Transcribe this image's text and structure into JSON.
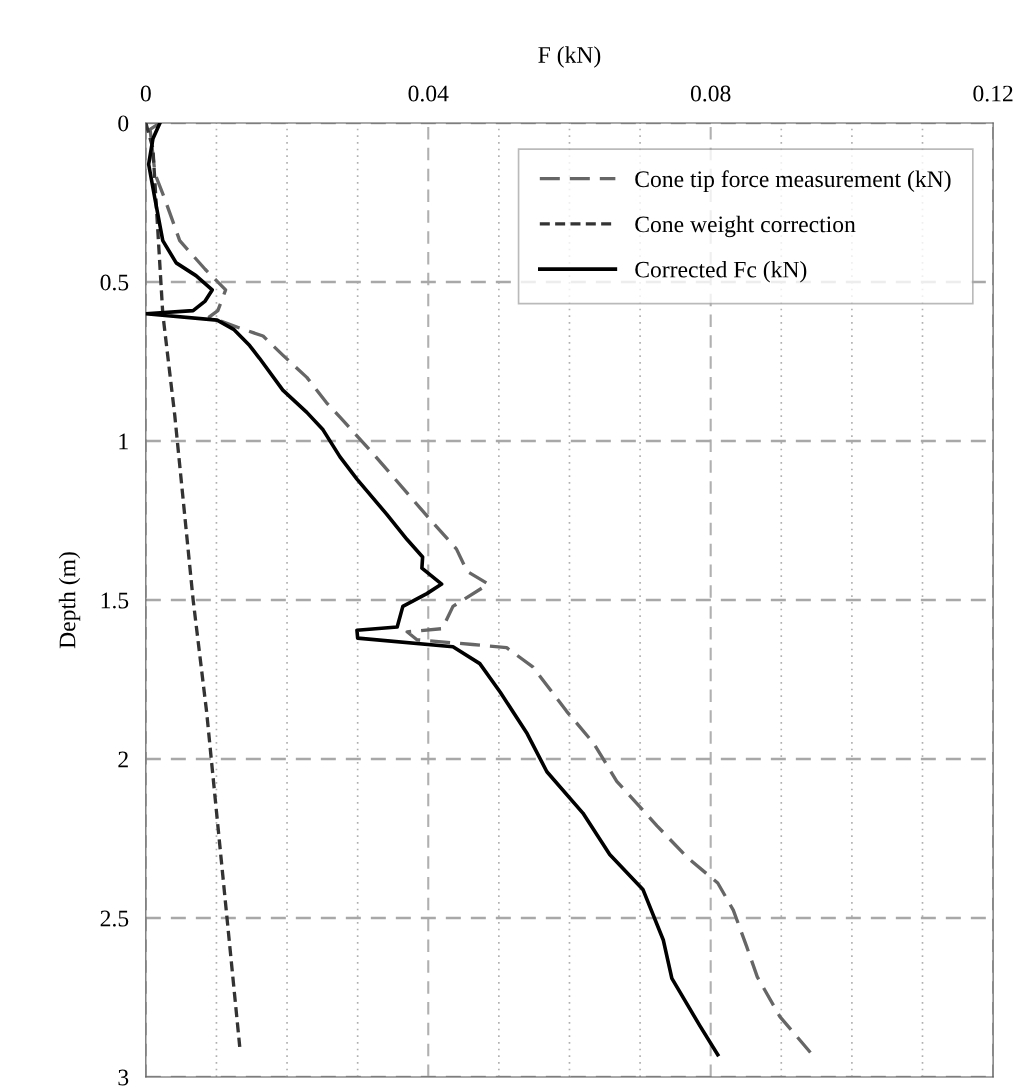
{
  "chart_data": {
    "type": "line",
    "xlabel": "F (kN)",
    "ylabel": "Depth (m)",
    "xlim": [
      0,
      0.12
    ],
    "ylim": [
      3,
      0
    ],
    "xticks": [
      0,
      {
        "value": 0.01,
        "label": null
      },
      {
        "value": 0.02,
        "label": null
      },
      {
        "value": 0.03,
        "label": null
      },
      0.04,
      {
        "value": 0.05,
        "label": null
      },
      {
        "value": 0.06,
        "label": null
      },
      {
        "value": 0.07,
        "label": null
      },
      0.08,
      {
        "value": 0.09,
        "label": null
      },
      {
        "value": 0.1,
        "label": null
      },
      {
        "value": 0.11,
        "label": null
      },
      0.12
    ],
    "yticks": [
      0,
      0.5,
      1,
      1.5,
      2,
      2.5,
      3
    ],
    "grid": true,
    "legend": "top right",
    "marker": "none",
    "series": [
      {
        "name": "Cone tip force measurement (kN)",
        "color": "#666666",
        "line_style": "dashed",
        "x": [
          0.002,
          0.0006,
          0.0013,
          0.0027,
          0.0048,
          0.0084,
          0.0113,
          0.0102,
          0.009,
          0.0133,
          0.0166,
          0.0194,
          0.0228,
          0.0256,
          0.0275,
          0.0322,
          0.0392,
          0.044,
          0.0455,
          0.0485,
          0.0435,
          0.042,
          0.037,
          0.0384,
          0.0463,
          0.0511,
          0.0548,
          0.0596,
          0.0634,
          0.0667,
          0.0724,
          0.0767,
          0.081,
          0.0832,
          0.0851,
          0.0866,
          0.0898,
          0.0944
        ],
        "values": [
          0,
          0.02,
          0.16,
          0.24,
          0.37,
          0.46,
          0.525,
          0.59,
          0.61,
          0.645,
          0.67,
          0.73,
          0.8,
          0.88,
          0.925,
          1.04,
          1.22,
          1.34,
          1.41,
          1.45,
          1.52,
          1.59,
          1.6,
          1.625,
          1.64,
          1.65,
          1.71,
          1.85,
          1.95,
          2.07,
          2.21,
          2.31,
          2.39,
          2.475,
          2.59,
          2.685,
          2.81,
          2.93
        ]
      },
      {
        "name": "Cone weight correction",
        "color": "#333333",
        "line_style": "dotted",
        "x": [
          0,
          0.001,
          0.0024,
          0.0041,
          0.0067,
          0.0086,
          0.0133
        ],
        "values": [
          0,
          0.08,
          0.6,
          0.92,
          1.5,
          1.85,
          2.905
        ]
      },
      {
        "name": "Corrected Fc (kN)",
        "color": "#000000",
        "line_style": "solid",
        "x": [
          0.002,
          0.001,
          0.0004,
          0.0013,
          0.0024,
          0.0043,
          0.0071,
          0.0094,
          0.0084,
          0.0067,
          0,
          0.0101,
          0.0125,
          0.0147,
          0.0161,
          0.0194,
          0.0228,
          0.0251,
          0.0275,
          0.0299,
          0.0341,
          0.037,
          0.0392,
          0.0391,
          0.0419,
          0.0398,
          0.0364,
          0.0356,
          0.0299,
          0.03,
          0.0435,
          0.0473,
          0.0502,
          0.054,
          0.0568,
          0.0619,
          0.0657,
          0.0704,
          0.0733,
          0.0745,
          0.0785,
          0.081
        ],
        "values": [
          0,
          0.05,
          0.13,
          0.24,
          0.37,
          0.44,
          0.48,
          0.525,
          0.56,
          0.59,
          0.6,
          0.62,
          0.65,
          0.7,
          0.74,
          0.84,
          0.91,
          0.965,
          1.05,
          1.12,
          1.23,
          1.31,
          1.365,
          1.4,
          1.45,
          1.48,
          1.52,
          1.585,
          1.595,
          1.62,
          1.647,
          1.7,
          1.79,
          1.92,
          2.04,
          2.17,
          2.3,
          2.41,
          2.57,
          2.69,
          2.84,
          2.93
        ]
      }
    ]
  }
}
